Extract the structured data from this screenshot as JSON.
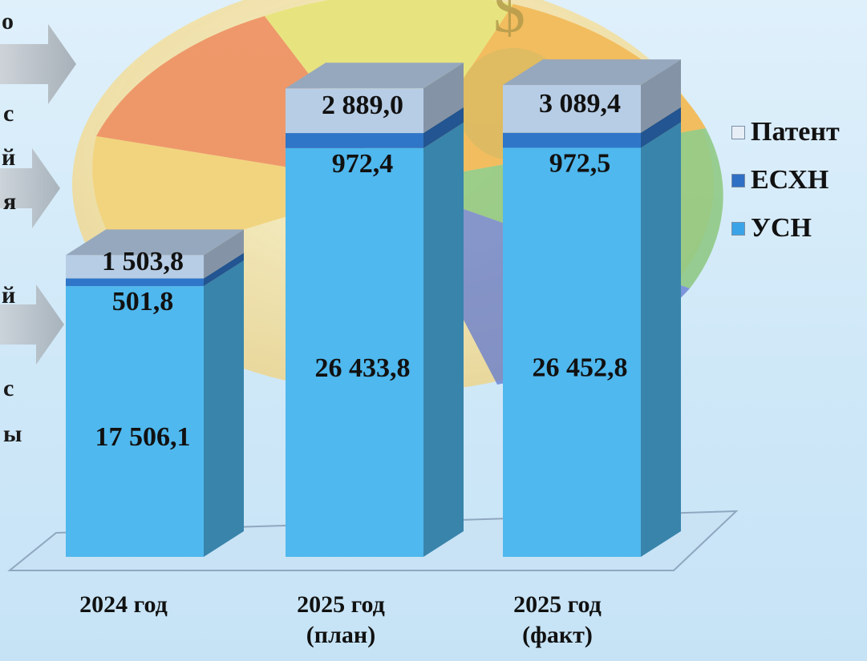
{
  "chart_data": {
    "type": "bar",
    "stacked": true,
    "three_d": true,
    "categories": [
      "2024 год",
      "2025 год (план)",
      "2025 год (факт)"
    ],
    "category_lines": [
      [
        "2024 год"
      ],
      [
        "2025 год",
        "(план)"
      ],
      [
        "2025 год",
        "(факт)"
      ]
    ],
    "series": [
      {
        "name": "УСН",
        "values": [
          17506.1,
          26433.8,
          26452.8
        ],
        "labels": [
          "17 506,1",
          "26 433,8",
          "26 452,8"
        ],
        "color": "#4fb8ee"
      },
      {
        "name": "ЕСХН",
        "values": [
          501.8,
          972.4,
          972.5
        ],
        "labels": [
          "501,8",
          "972,4",
          "972,5"
        ],
        "color": "#2f76c9"
      },
      {
        "name": "Патент",
        "values": [
          1503.8,
          2889.0,
          3089.4
        ],
        "labels": [
          "1 503,8",
          "2 889,0",
          "3 089,4"
        ],
        "color": "#b7cde6"
      }
    ],
    "legend_order": [
      "Патент",
      "ЕСХН",
      "УСН"
    ],
    "legend_position": "right",
    "grid": false
  },
  "background_fragments": [
    "о",
    "с",
    "й",
    "я",
    "й",
    "с",
    "ы"
  ]
}
